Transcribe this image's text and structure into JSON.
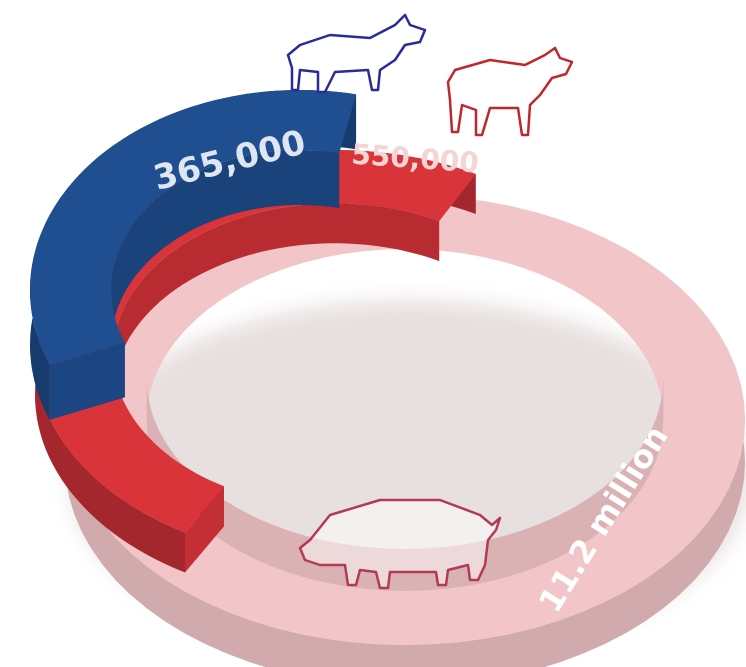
{
  "chart_data": {
    "type": "ring",
    "values": [
      365000,
      550000,
      11200000
    ],
    "value_labels": [
      "365,000",
      "550,000",
      "11.2 million"
    ],
    "colors": [
      "#1f4e91",
      "#d9343a",
      "#f2c6c8"
    ]
  }
}
